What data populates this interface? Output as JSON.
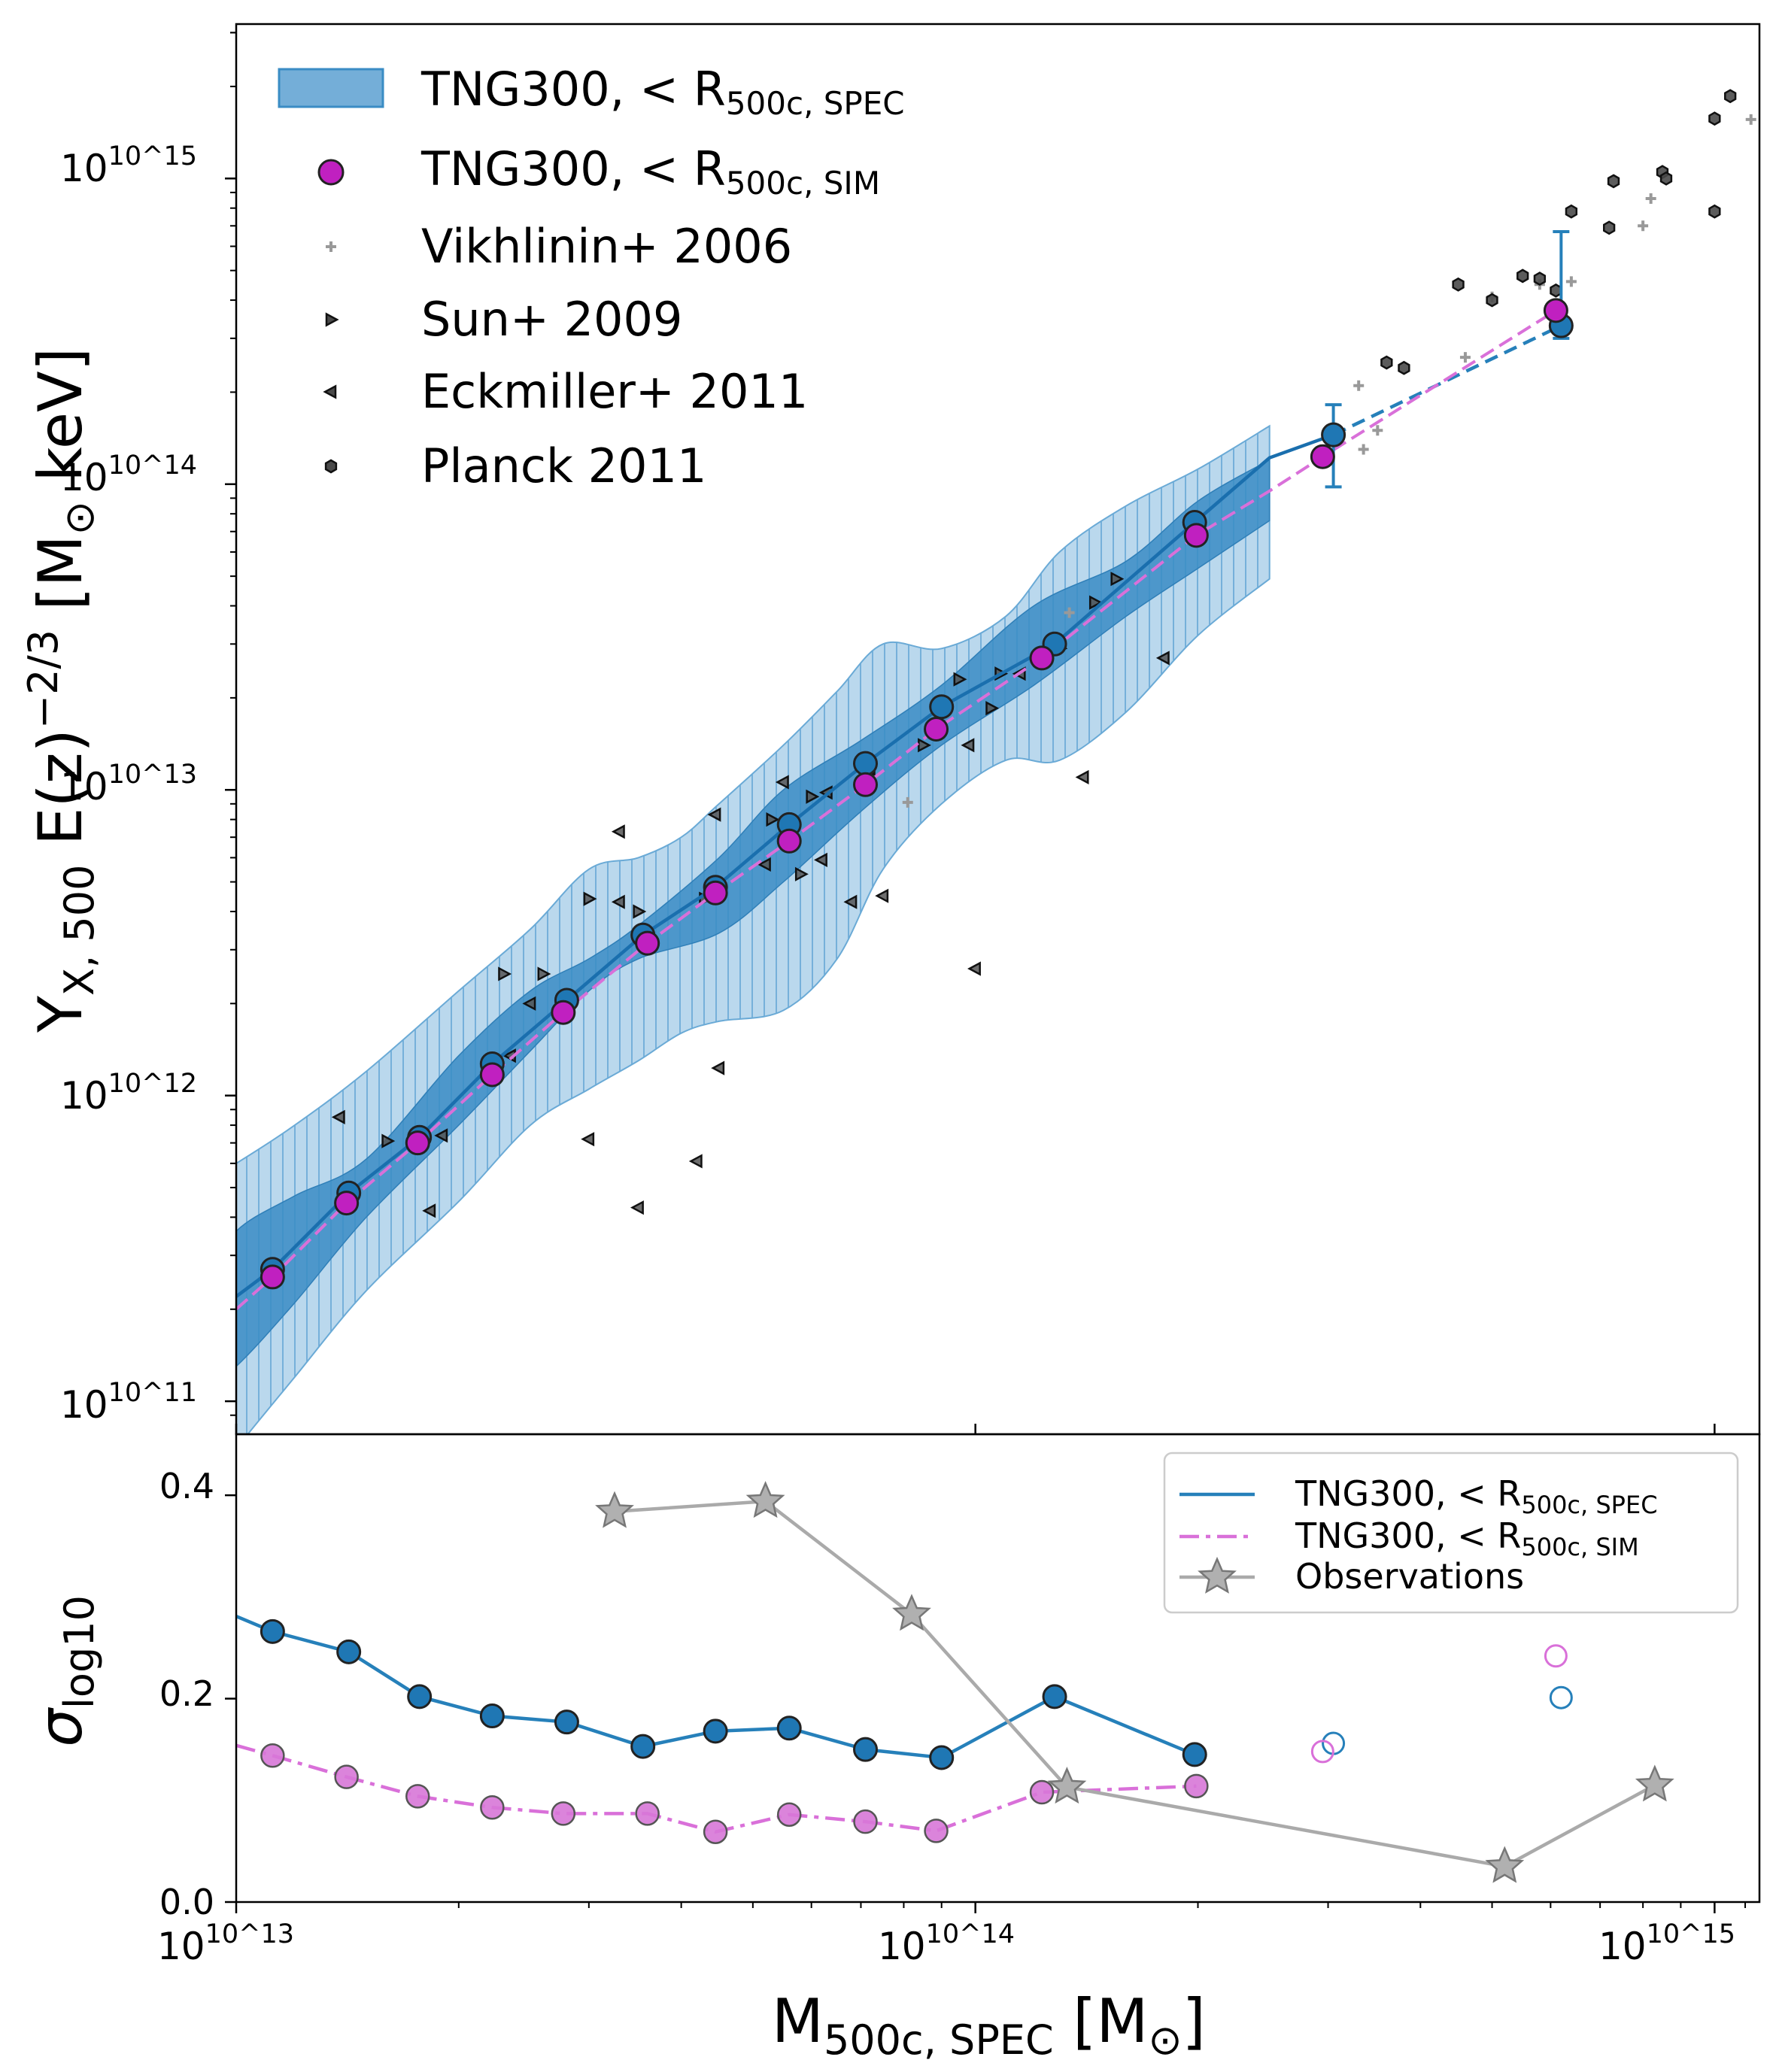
{
  "chart_data": [
    {
      "type": "scatter",
      "panel": "top",
      "xscale": "log",
      "yscale": "log",
      "xlim": [
        10000000000000.0,
        1150000000000000.0
      ],
      "ylim": [
        78000000000.0,
        3200000000000000.0
      ],
      "ylabel": "Y_{X, 500} E(z)^{-2/3} [M_⊙ keV]",
      "x_tick_labels": [
        "10^13",
        "10^14",
        "10^15"
      ],
      "y_tick_labels": [
        "10^11",
        "10^12",
        "10^13",
        "10^14",
        "10^15"
      ],
      "legend_position": "top-left",
      "legend": {
        "band": {
          "main": "TNG300, ",
          "sub": "500c, SPEC"
        },
        "sim_points": {
          "main": "TNG300, ",
          "sub": "500c, SIM"
        },
        "vikhlinin": "Vikhlinin+ 2006",
        "sun": "Sun+ 2009",
        "eckmiller": "Eckmiller+ 2011",
        "planck": "Planck 2011"
      },
      "colors": {
        "spec": "#1f77b4",
        "spec_line": "#1a6fae",
        "sim": "#c020c0",
        "sim_line": "#d970d9",
        "band_dark": "#3a8cc4",
        "band_light": "#9cc8e6",
        "obs": "#888888"
      },
      "spec_median": {
        "x": [
          11200000000000.0,
          14200000000000.0,
          17700000000000.0,
          22200000000000.0,
          28000000000000.0,
          35500000000000.0,
          44500000000000.0,
          56000000000000.0,
          71000000000000.0,
          90000000000000.0,
          128000000000000.0,
          198000000000000.0
        ],
        "y": [
          270000000000.0,
          480000000000.0,
          730000000000.0,
          1270000000000.0,
          2050000000000.0,
          3350000000000.0,
          4800000000000.0,
          7700000000000.0,
          12200000000000.0,
          18700000000000.0,
          30000000000000.0,
          75000000000000.0
        ]
      },
      "sim_median": {
        "x": [
          11200000000000.0,
          14100000000000.0,
          17600000000000.0,
          22200000000000.0,
          27700000000000.0,
          36000000000000.0,
          44500000000000.0,
          56000000000000.0,
          71000000000000.0,
          88500000000000.0,
          123000000000000.0,
          199000000000000.0
        ],
        "y": [
          255000000000.0,
          445000000000.0,
          700000000000.0,
          1170000000000.0,
          1870000000000.0,
          3150000000000.0,
          4600000000000.0,
          6800000000000.0,
          10400000000000.0,
          15800000000000.0,
          27000000000000.0,
          68000000000000.0
        ]
      },
      "spec_highmass": {
        "x": [
          305000000000000.0,
          620000000000000.0
        ],
        "y": [
          145000000000000.0,
          330000000000000.0
        ],
        "err_low": [
          98000000000000.0,
          300000000000000.0
        ],
        "err_high": [
          182000000000000.0,
          670000000000000.0
        ]
      },
      "sim_highmass": {
        "x": [
          295000000000000.0,
          610000000000000.0
        ],
        "y": [
          123000000000000.0,
          370000000000000.0
        ]
      },
      "band_16_84": {
        "x": [
          9000000000000.0,
          10000000000000.0,
          12000000000000.0,
          15000000000000.0,
          20000000000000.0,
          25000000000000.0,
          30000000000000.0,
          35000000000000.0,
          45000000000000.0,
          55000000000000.0,
          70000000000000.0,
          90000000000000.0,
          120000000000000.0,
          160000000000000.0,
          200000000000000.0,
          250000000000000.0
        ],
        "low": [
          110000000000.0,
          130000000000.0,
          210000000000.0,
          400000000000.0,
          800000000000.0,
          1400000000000.0,
          2200000000000.0,
          2800000000000.0,
          3400000000000.0,
          5000000000000.0,
          8500000000000.0,
          14000000000000.0,
          22000000000000.0,
          37000000000000.0,
          53000000000000.0,
          76000000000000.0
        ],
        "high": [
          240000000000.0,
          360000000000.0,
          470000000000.0,
          620000000000.0,
          1350000000000.0,
          2200000000000.0,
          2800000000000.0,
          3600000000000.0,
          6000000000000.0,
          10000000000000.0,
          14500000000000.0,
          22000000000000.0,
          40000000000000.0,
          56000000000000.0,
          88000000000000.0,
          120000000000000.0
        ]
      },
      "band_2_98": {
        "x": [
          9000000000000.0,
          10000000000000.0,
          12000000000000.0,
          15000000000000.0,
          20000000000000.0,
          25000000000000.0,
          30000000000000.0,
          35000000000000.0,
          40000000000000.0,
          45000000000000.0,
          55000000000000.0,
          65000000000000.0,
          75000000000000.0,
          90000000000000.0,
          110000000000000.0,
          130000000000000.0,
          160000000000000.0,
          200000000000000.0,
          250000000000000.0
        ],
        "low": [
          50000000000.0,
          70000000000.0,
          120000000000.0,
          230000000000.0,
          450000000000.0,
          800000000000.0,
          1050000000000.0,
          1300000000000.0,
          1600000000000.0,
          1750000000000.0,
          1900000000000.0,
          2800000000000.0,
          5500000000000.0,
          9000000000000.0,
          12500000000000.0,
          12500000000000.0,
          18000000000000.0,
          32000000000000.0,
          49000000000000.0
        ],
        "high": [
          520000000000.0,
          600000000000.0,
          800000000000.0,
          1200000000000.0,
          2200000000000.0,
          3500000000000.0,
          5500000000000.0,
          6000000000000.0,
          7000000000000.0,
          9000000000000.0,
          14000000000000.0,
          21000000000000.0,
          30000000000000.0,
          29000000000000.0,
          37000000000000.0,
          60000000000000.0,
          85000000000000.0,
          112000000000000.0,
          155000000000000.0
        ]
      },
      "obs_sun": {
        "x": [
          23000000000000.0,
          26000000000000.0,
          16000000000000.0,
          30000000000000.0,
          35000000000000.0,
          43000000000000.0,
          53000000000000.0,
          60000000000000.0,
          58000000000000.0,
          85000000000000.0,
          95000000000000.0,
          108000000000000.0,
          130000000000000.0,
          145000000000000.0,
          155000000000000.0,
          105000000000000.0
        ],
        "y": [
          2500000000000.0,
          2500000000000.0,
          710000000000.0,
          4400000000000.0,
          4000000000000.0,
          4400000000000.0,
          8000000000000.0,
          9500000000000.0,
          5300000000000.0,
          14000000000000.0,
          23000000000000.0,
          24000000000000.0,
          29000000000000.0,
          41000000000000.0,
          49000000000000.0,
          18500000000000.0
        ]
      },
      "obs_eckmiller": {
        "x": [
          13800000000000.0,
          18300000000000.0,
          19000000000000.0,
          25000000000000.0,
          23500000000000.0,
          30000000000000.0,
          33000000000000.0,
          35000000000000.0,
          33000000000000.0,
          42000000000000.0,
          45000000000000.0,
          44500000000000.0,
          55000000000000.0,
          62000000000000.0,
          68000000000000.0,
          75000000000000.0,
          100000000000000.0,
          140000000000000.0,
          180000000000000.0,
          115000000000000.0,
          63000000000000.0,
          72000000000000.0,
          52000000000000.0,
          98000000000000.0
        ],
        "y": [
          850000000000.0,
          420000000000.0,
          740000000000.0,
          2000000000000.0,
          1350000000000.0,
          720000000000.0,
          4300000000000.0,
          430000000000.0,
          7300000000000.0,
          610000000000.0,
          1230000000000.0,
          8300000000000.0,
          10600000000000.0,
          5900000000000.0,
          4300000000000.0,
          4500000000000.0,
          2600000000000.0,
          11000000000000.0,
          27000000000000.0,
          24000000000000.0,
          9800000000000.0,
          11700000000000.0,
          5700000000000.0,
          14000000000000.0
        ]
      },
      "obs_vikhlinin": {
        "x": [
          81000000000000.0,
          134000000000000.0,
          330000000000000.0,
          335000000000000.0,
          500000000000000.0,
          580000000000000.0,
          640000000000000.0,
          800000000000000.0,
          820000000000000.0,
          1120000000000000.0,
          350000000000000.0,
          460000000000000.0
        ],
        "y": [
          9100000000000.0,
          38000000000000.0,
          210000000000000.0,
          130000000000000.0,
          410000000000000.0,
          450000000000000.0,
          460000000000000.0,
          700000000000000.0,
          860000000000000.0,
          1560000000000000.0,
          150000000000000.0,
          260000000000000.0
        ]
      },
      "obs_planck": {
        "x": [
          360000000000000.0,
          380000000000000.0,
          450000000000000.0,
          500000000000000.0,
          550000000000000.0,
          580000000000000.0,
          610000000000000.0,
          640000000000000.0,
          720000000000000.0,
          730000000000000.0,
          850000000000000.0,
          860000000000000.0,
          1000000000000000.0,
          1050000000000000.0,
          1000000000000000.0
        ],
        "y": [
          250000000000000.0,
          240000000000000.0,
          450000000000000.0,
          400000000000000.0,
          480000000000000.0,
          470000000000000.0,
          430000000000000.0,
          780000000000000.0,
          690000000000000.0,
          980000000000000.0,
          1050000000000000.0,
          1000000000000000.0,
          780000000000000.0,
          1860000000000000.0,
          1570000000000000.0
        ]
      }
    },
    {
      "type": "line",
      "panel": "bottom",
      "xscale": "log",
      "xlim": [
        10000000000000.0,
        1150000000000000.0
      ],
      "ylim": [
        0.0,
        0.46
      ],
      "xlabel": "M_{500c, SPEC} [M_⊙]",
      "ylabel": "σ_log10",
      "x_tick_labels": [
        "10^13",
        "10^14",
        "10^15"
      ],
      "y_tick_labels": [
        "0.0",
        "0.2",
        "0.4"
      ],
      "y_ticks": [
        0.0,
        0.2,
        0.4
      ],
      "legend_position": "top-right",
      "legend": {
        "spec": {
          "main": "TNG300, ",
          "sub": "500c, SPEC"
        },
        "sim": {
          "main": "TNG300, ",
          "sub": "500c, SIM"
        },
        "obs": "Observations"
      },
      "series": [
        {
          "name": "TNG300, <R500c, SPEC",
          "x": [
            11200000000000.0,
            14200000000000.0,
            17700000000000.0,
            22200000000000.0,
            28000000000000.0,
            35500000000000.0,
            44500000000000.0,
            56000000000000.0,
            71000000000000.0,
            90000000000000.0,
            128000000000000.0,
            198000000000000.0
          ],
          "values": [
            0.266,
            0.246,
            0.202,
            0.183,
            0.177,
            0.153,
            0.168,
            0.171,
            0.15,
            0.142,
            0.202,
            0.145
          ],
          "edge_start": {
            "x": 10000000000000.0,
            "y": 0.281
          },
          "open_points": {
            "x": [
              305000000000000.0,
              620000000000000.0
            ],
            "values": [
              0.156,
              0.201
            ]
          }
        },
        {
          "name": "TNG300, <R500c, SIM",
          "x": [
            11200000000000.0,
            14100000000000.0,
            17600000000000.0,
            22200000000000.0,
            27700000000000.0,
            36000000000000.0,
            44500000000000.0,
            56000000000000.0,
            71000000000000.0,
            88500000000000.0,
            123000000000000.0,
            199000000000000.0
          ],
          "values": [
            0.144,
            0.123,
            0.104,
            0.093,
            0.087,
            0.087,
            0.069,
            0.086,
            0.079,
            0.07,
            0.108,
            0.114
          ],
          "edge_start": {
            "x": 10000000000000.0,
            "y": 0.154
          },
          "open_points": {
            "x": [
              295000000000000.0,
              610000000000000.0
            ],
            "values": [
              0.148,
              0.242
            ]
          }
        },
        {
          "name": "Observations",
          "x": [
            32500000000000.0,
            52000000000000.0,
            82000000000000.0,
            133000000000000.0,
            520000000000000.0,
            830000000000000.0
          ],
          "values": [
            0.384,
            0.394,
            0.283,
            0.113,
            0.035,
            0.115
          ]
        }
      ]
    }
  ]
}
